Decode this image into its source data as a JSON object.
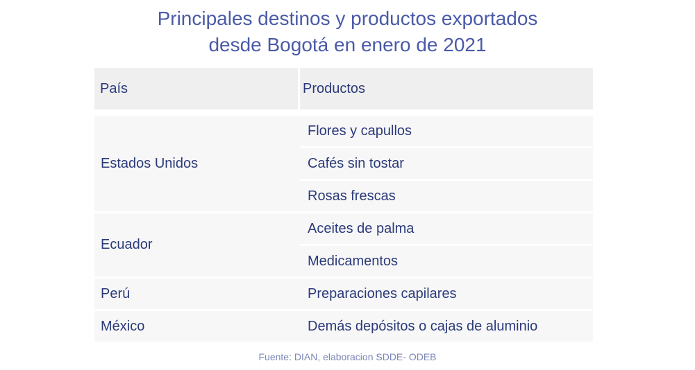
{
  "title": {
    "line1": "Principales destinos y productos exportados",
    "line2": "desde Bogotá  en enero de 2021"
  },
  "chart_data": {
    "type": "table",
    "columns": [
      "País",
      "Productos"
    ],
    "rows": [
      {
        "country": "Estados Unidos",
        "products": [
          "Flores y capullos",
          "Cafés sin tostar",
          "Rosas frescas"
        ]
      },
      {
        "country": "Ecuador",
        "products": [
          "Aceites de palma",
          "Medicamentos"
        ]
      },
      {
        "country": "Perú",
        "products": [
          "Preparaciones capilares"
        ]
      },
      {
        "country": "México",
        "products": [
          "Demás depósitos o cajas de aluminio"
        ]
      }
    ]
  },
  "source": "Fuente: DIAN, elaboracion SDDE- ODEB",
  "colors": {
    "title": "#4a5aa8",
    "text": "#2b3a7a",
    "header_bg": "#f0efef",
    "cell_bg": "#f7f7f7"
  }
}
